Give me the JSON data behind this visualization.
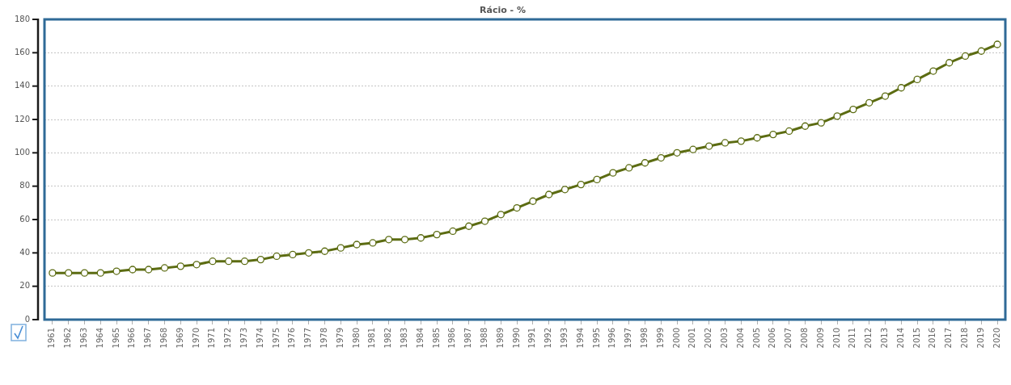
{
  "chart_data": {
    "type": "line",
    "title": "Rácio - %",
    "categories": [
      "1961",
      "1962",
      "1963",
      "1964",
      "1965",
      "1966",
      "1967",
      "1968",
      "1969",
      "1970",
      "1971",
      "1972",
      "1973",
      "1974",
      "1975",
      "1976",
      "1977",
      "1978",
      "1979",
      "1980",
      "1981",
      "1982",
      "1983",
      "1984",
      "1985",
      "1986",
      "1987",
      "1988",
      "1989",
      "1990",
      "1991",
      "1992",
      "1993",
      "1994",
      "1995",
      "1996",
      "1997",
      "1998",
      "1999",
      "2000",
      "2001",
      "2002",
      "2003",
      "2004",
      "2005",
      "2006",
      "2007",
      "2008",
      "2009",
      "2010",
      "2011",
      "2012",
      "2013",
      "2014",
      "2015",
      "2016",
      "2017",
      "2018",
      "2019",
      "2020"
    ],
    "series": [
      {
        "color": "#5c6c12",
        "values": [
          28,
          28,
          28,
          28,
          29,
          30,
          30,
          31,
          32,
          33,
          35,
          35,
          35,
          36,
          38,
          39,
          40,
          41,
          43,
          45,
          46,
          48,
          48,
          49,
          51,
          53,
          56,
          59,
          63,
          67,
          71,
          75,
          78,
          81,
          84,
          88,
          91,
          94,
          97,
          100,
          102,
          104,
          106,
          107,
          109,
          111,
          113,
          116,
          118,
          122,
          126,
          130,
          134,
          139,
          144,
          149,
          154,
          158,
          161,
          165
        ]
      }
    ],
    "ylim": [
      0,
      180
    ],
    "yticks": [
      0,
      20,
      40,
      60,
      80,
      100,
      120,
      140,
      160,
      180
    ],
    "grid": "y",
    "marker": "circle"
  }
}
